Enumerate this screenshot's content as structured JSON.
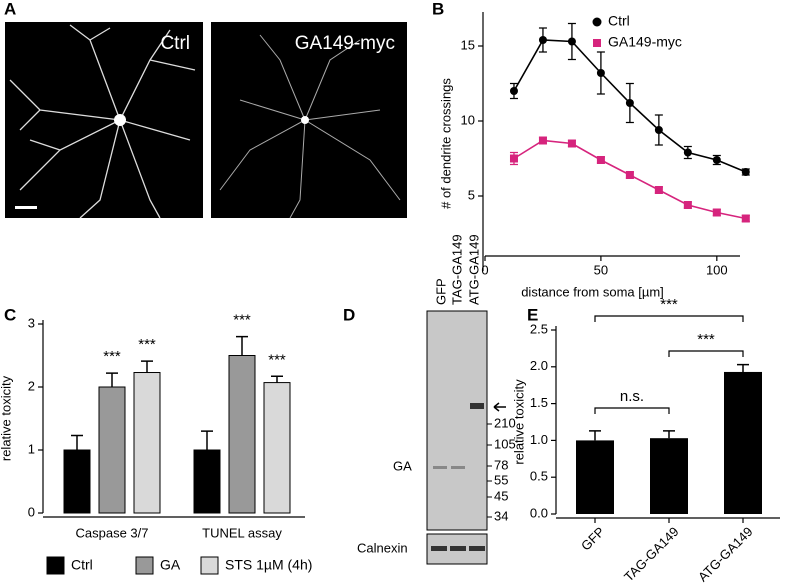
{
  "panel_labels": [
    "A",
    "B",
    "C",
    "D",
    "E"
  ],
  "images": [
    {
      "label": "Ctrl"
    },
    {
      "label": "GA149-myc"
    }
  ],
  "blot": {
    "lanes": [
      "GFP",
      "TAG-GA149",
      "ATG-GA149"
    ],
    "markers": [
      "210",
      "105",
      "78",
      "55",
      "45",
      "34"
    ],
    "label": "GA",
    "loading_label": "Calnexin"
  },
  "chart_data": [
    {
      "type": "line",
      "xlabel": "distance from soma [µm]",
      "ylabel": "# of dendrite crossings",
      "x": [
        12.5,
        25,
        37.5,
        50,
        62.5,
        75,
        87.5,
        100,
        112.5
      ],
      "series": [
        {
          "name": "Ctrl",
          "color": "#000000",
          "values": [
            12,
            15.4,
            15.3,
            13.2,
            11.2,
            9.4,
            7.9,
            7.4,
            6.6
          ],
          "errors": [
            0.5,
            0.8,
            1.2,
            1.4,
            1.3,
            1.0,
            0.4,
            0.3,
            0.2
          ]
        },
        {
          "name": "GA149-myc",
          "color": "#d6247d",
          "values": [
            7.5,
            8.7,
            8.5,
            7.4,
            6.4,
            5.4,
            4.4,
            3.9,
            3.5
          ],
          "errors": [
            0.4,
            0.2,
            0.2,
            0.2,
            0.2,
            0.2,
            0.2,
            0.2,
            0.2
          ]
        }
      ],
      "xlim": [
        0,
        110
      ],
      "xticks": [
        0,
        50,
        100
      ],
      "ylim": [
        0,
        17
      ],
      "yticks": [
        5,
        10,
        15
      ]
    },
    {
      "type": "bar",
      "ylabel": "relative toxicity",
      "categories": [
        "Caspase 3/7",
        "TUNEL assay"
      ],
      "series": [
        {
          "name": "Ctrl",
          "color": "#000000",
          "values": [
            1.0,
            1.0
          ],
          "errors": [
            0.23,
            0.3
          ]
        },
        {
          "name": "GA",
          "color": "#999999",
          "values": [
            2.0,
            2.5
          ],
          "errors": [
            0.22,
            0.3
          ]
        },
        {
          "name": "STS 1µM (4h)",
          "color": "#d9d9d9",
          "values": [
            2.23,
            2.07
          ],
          "errors": [
            0.18,
            0.1
          ]
        }
      ],
      "annotations": [
        "***",
        "***",
        "***",
        "***"
      ],
      "ylim": [
        0,
        3
      ],
      "yticks": [
        0,
        1,
        2,
        3
      ]
    },
    {
      "type": "bar",
      "ylabel": "relative toxicity",
      "categories": [
        "GFP",
        "TAG-GA149",
        "ATG-GA149"
      ],
      "values": [
        1.0,
        1.03,
        1.93
      ],
      "errors": [
        0.13,
        0.1,
        0.1
      ],
      "color": "#000000",
      "annotations": [
        "n.s.",
        "***",
        "***"
      ],
      "ylim": [
        0,
        2.5
      ],
      "yticks": [
        {
          "value": 0,
          "label": "0.0"
        },
        0.5,
        {
          "value": 1,
          "label": "1.0"
        },
        1.5,
        {
          "value": 2,
          "label": "2.0"
        },
        2.5
      ]
    }
  ]
}
